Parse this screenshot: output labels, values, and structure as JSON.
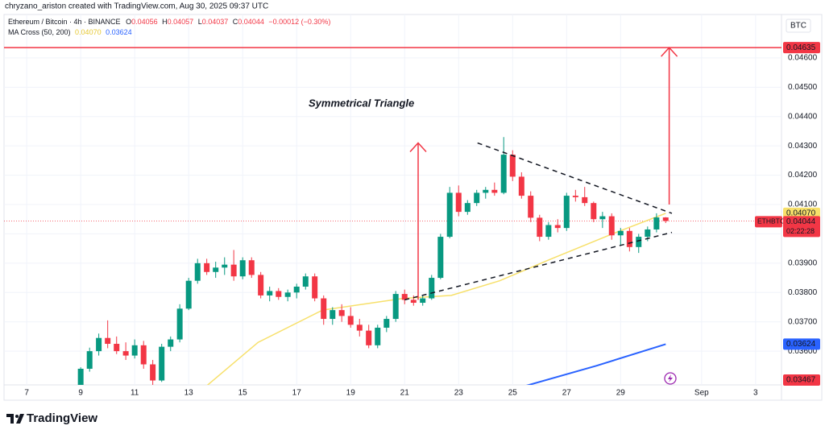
{
  "header": {
    "credit": "chryzano_ariston created with TradingView.com, Aug 30, 2025 09:37 UTC",
    "symbol": "Ethereum / Bitcoin · 4h · BINANCE",
    "ohlc_labels": [
      "O",
      "H",
      "L",
      "C"
    ],
    "change": "−0.00012 (−0.30%)",
    "indicator": "MA Cross (50, 200)"
  },
  "chart_data": {
    "type": "candlestick",
    "currency": "BTC",
    "x": [
      8.67,
      9,
      9.33,
      9.67,
      10,
      10.33,
      10.67,
      11,
      11.33,
      11.67,
      12,
      12.33,
      12.67,
      13,
      13.33,
      13.67,
      14,
      14.33,
      14.67,
      15,
      15.33,
      15.67,
      16,
      16.33,
      16.67,
      17,
      17.33,
      17.67,
      18,
      18.33,
      18.67,
      19,
      19.33,
      19.67,
      20,
      20.33,
      20.67,
      21,
      21.33,
      21.67,
      22,
      22.33,
      22.67,
      23,
      23.33,
      23.67,
      24,
      24.33,
      24.67,
      25,
      25.33,
      25.67,
      26,
      26.33,
      26.67,
      27,
      27.33,
      27.67,
      28,
      28.33,
      28.67,
      29,
      29.33,
      29.67,
      30,
      30.33,
      30.67
    ],
    "open": [
      0.0347,
      0.03462,
      0.0354,
      0.036,
      0.03645,
      0.03625,
      0.036,
      0.03585,
      0.0362,
      0.03555,
      0.035,
      0.03615,
      0.0364,
      0.03745,
      0.0384,
      0.039,
      0.0387,
      0.03885,
      0.03895,
      0.03855,
      0.0391,
      0.0386,
      0.0379,
      0.03805,
      0.03785,
      0.038,
      0.0382,
      0.03855,
      0.0378,
      0.0371,
      0.0374,
      0.0372,
      0.0369,
      0.0367,
      0.0362,
      0.0368,
      0.0371,
      0.03795,
      0.03775,
      0.03765,
      0.0378,
      0.0385,
      0.0399,
      0.0414,
      0.04075,
      0.04105,
      0.0414,
      0.0415,
      0.0414,
      0.0427,
      0.04195,
      0.0413,
      0.04055,
      0.0399,
      0.0403,
      0.0402,
      0.0413,
      0.04125,
      0.04105,
      0.0405,
      0.0406,
      0.03995,
      0.0401,
      0.03955,
      0.0399,
      0.04015,
      0.04056
    ],
    "high": [
      0.03478,
      0.03545,
      0.03612,
      0.0366,
      0.03705,
      0.0365,
      0.0363,
      0.0364,
      0.03635,
      0.0357,
      0.03625,
      0.0365,
      0.0376,
      0.0385,
      0.03915,
      0.03915,
      0.03905,
      0.0392,
      0.03945,
      0.0392,
      0.0392,
      0.0387,
      0.0382,
      0.03815,
      0.0381,
      0.0383,
      0.03865,
      0.03865,
      0.0379,
      0.0375,
      0.0376,
      0.0375,
      0.0371,
      0.0369,
      0.0369,
      0.0372,
      0.03805,
      0.0381,
      0.0379,
      0.0379,
      0.0386,
      0.04,
      0.0416,
      0.04165,
      0.04115,
      0.0415,
      0.0416,
      0.04175,
      0.0433,
      0.04285,
      0.0421,
      0.04145,
      0.04065,
      0.0404,
      0.0405,
      0.0414,
      0.0415,
      0.0416,
      0.0411,
      0.04075,
      0.0407,
      0.0402,
      0.0402,
      0.04,
      0.04025,
      0.0407,
      0.04057
    ],
    "low": [
      0.03452,
      0.03458,
      0.0353,
      0.03585,
      0.0361,
      0.0359,
      0.0357,
      0.03575,
      0.0354,
      0.0348,
      0.03495,
      0.036,
      0.0363,
      0.0374,
      0.0383,
      0.0386,
      0.0385,
      0.0386,
      0.0384,
      0.03845,
      0.0385,
      0.0378,
      0.0377,
      0.03775,
      0.0377,
      0.0378,
      0.0381,
      0.0377,
      0.0369,
      0.0369,
      0.037,
      0.0368,
      0.0365,
      0.0361,
      0.0361,
      0.03665,
      0.037,
      0.0376,
      0.03755,
      0.03755,
      0.03775,
      0.03845,
      0.03985,
      0.0406,
      0.04065,
      0.04095,
      0.0412,
      0.0413,
      0.04135,
      0.0418,
      0.0412,
      0.0404,
      0.03975,
      0.0398,
      0.04005,
      0.0401,
      0.0411,
      0.04095,
      0.0404,
      0.0402,
      0.0398,
      0.0396,
      0.0394,
      0.03935,
      0.03975,
      0.04005,
      0.04037
    ],
    "close": [
      0.03462,
      0.0354,
      0.036,
      0.03645,
      0.03625,
      0.036,
      0.03585,
      0.0362,
      0.03555,
      0.035,
      0.03615,
      0.0364,
      0.03745,
      0.0384,
      0.039,
      0.0387,
      0.03885,
      0.03895,
      0.03855,
      0.0391,
      0.0386,
      0.0379,
      0.03805,
      0.03785,
      0.038,
      0.0382,
      0.03855,
      0.0378,
      0.0371,
      0.0374,
      0.0372,
      0.0369,
      0.0367,
      0.0362,
      0.0368,
      0.0371,
      0.03795,
      0.03775,
      0.03765,
      0.0378,
      0.0385,
      0.0399,
      0.0414,
      0.04075,
      0.04105,
      0.0414,
      0.0415,
      0.0414,
      0.0427,
      0.04195,
      0.0413,
      0.04055,
      0.0399,
      0.0403,
      0.0402,
      0.0413,
      0.04125,
      0.04105,
      0.0405,
      0.0406,
      0.03995,
      0.0401,
      0.03955,
      0.0399,
      0.04015,
      0.04056,
      0.04044
    ],
    "up_color": "#089981",
    "down_color": "#f23645",
    "ma": [
      {
        "color": "#f7e06a",
        "x": [
          13.63,
          15.57,
          17.96,
          20.94,
          22.73,
          24.52,
          26.31,
          28.7,
          30.67
        ],
        "values": [
          0.03479,
          0.0363,
          0.0374,
          0.0378,
          0.0379,
          0.0384,
          0.0391,
          0.04,
          0.0407
        ],
        "last_label": "0.04070"
      },
      {
        "color": "#2962ff",
        "x": [
          25.42,
          28.1,
          30.67
        ],
        "values": [
          0.0348,
          0.0355,
          0.03624
        ],
        "last_label": "0.03624"
      }
    ],
    "xlim": [
      6.16,
      34.96
    ],
    "xticks": [
      7,
      9,
      11,
      13,
      15,
      17,
      19,
      21,
      23,
      25,
      27,
      29,
      {
        "value": 32,
        "label": "Sep"
      },
      {
        "value": 34,
        "label": "3"
      }
    ],
    "ylim": [
      0.03485,
      0.04748
    ],
    "yticks": [
      {
        "value": 0.036,
        "label": "0.03600"
      },
      {
        "value": 0.037,
        "label": "0.03700"
      },
      {
        "value": 0.038,
        "label": "0.03800"
      },
      {
        "value": 0.039,
        "label": "0.03900"
      },
      {
        "value": 0.04,
        "label": "0.04000"
      },
      {
        "value": 0.041,
        "label": "0.04100"
      },
      {
        "value": 0.042,
        "label": "0.04200"
      },
      {
        "value": 0.043,
        "label": "0.04300"
      },
      {
        "value": 0.044,
        "label": "0.04400"
      },
      {
        "value": 0.045,
        "label": "0.04500"
      },
      {
        "value": 0.046,
        "label": "0.04600"
      }
    ],
    "grid": true,
    "last_price": {
      "symbol": "ETHBTC",
      "value": 0.04044,
      "countdown": "02:22:28"
    },
    "alert_price": 0.03467,
    "hline": {
      "value": 0.04635,
      "color": "#f23645"
    },
    "annotation": "Symmetrical Triangle",
    "triangle": {
      "upper": [
        [
          23.7,
          0.0431
        ],
        [
          30.9,
          0.0407
        ]
      ],
      "lower": [
        [
          21,
          0.03775
        ],
        [
          30.9,
          0.04005
        ]
      ]
    },
    "arrows": [
      [
        21.5,
        0.03775,
        0.0431
      ],
      [
        30.8,
        0.041,
        0.04635
      ]
    ]
  },
  "footer": {
    "brand": "TradingView"
  }
}
